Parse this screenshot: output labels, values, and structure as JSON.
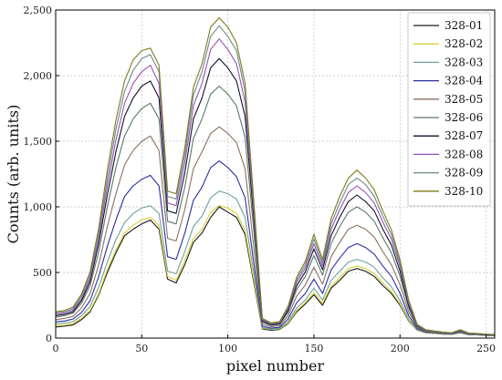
{
  "chart_data": {
    "type": "line",
    "title": "",
    "xlabel": "pixel number",
    "ylabel": "Counts (arb. units)",
    "xlim": [
      0,
      255
    ],
    "ylim": [
      0,
      2500
    ],
    "xticks": [
      0,
      50,
      100,
      150,
      200,
      250
    ],
    "yticks": [
      0,
      500,
      1000,
      1500,
      2000,
      2500
    ],
    "xtick_labels": [
      "0",
      "50",
      "100",
      "150",
      "200",
      "250"
    ],
    "ytick_labels": [
      "0",
      "500",
      "1,000",
      "1,500",
      "2,000",
      "2,500"
    ],
    "grid": true,
    "legend_position": "top-right",
    "x": [
      0,
      5,
      10,
      15,
      20,
      25,
      30,
      35,
      40,
      45,
      50,
      55,
      60,
      65,
      70,
      75,
      80,
      85,
      90,
      95,
      100,
      105,
      110,
      115,
      120,
      125,
      130,
      135,
      140,
      145,
      150,
      155,
      160,
      165,
      170,
      175,
      180,
      185,
      190,
      195,
      200,
      205,
      210,
      215,
      220,
      225,
      230,
      235,
      240,
      245,
      250,
      255
    ],
    "series": [
      {
        "name": "328-01",
        "color": "#1a1a1a",
        "values": [
          85,
          90,
          100,
          140,
          200,
          330,
          500,
          650,
          780,
          830,
          870,
          900,
          830,
          450,
          420,
          560,
          730,
          800,
          920,
          1000,
          960,
          920,
          790,
          430,
          70,
          60,
          65,
          110,
          200,
          260,
          330,
          250,
          380,
          440,
          510,
          530,
          510,
          470,
          400,
          340,
          250,
          130,
          60,
          40,
          35,
          30,
          28,
          40,
          26,
          24,
          20,
          18
        ]
      },
      {
        "name": "328-02",
        "color": "#d8d035",
        "values": [
          95,
          100,
          110,
          150,
          210,
          340,
          520,
          670,
          800,
          860,
          900,
          920,
          860,
          470,
          440,
          590,
          760,
          830,
          960,
          1010,
          990,
          950,
          820,
          450,
          75,
          65,
          70,
          115,
          210,
          270,
          345,
          265,
          395,
          460,
          530,
          550,
          530,
          490,
          420,
          355,
          260,
          135,
          62,
          42,
          36,
          32,
          29,
          42,
          27,
          25,
          21,
          19
        ]
      },
      {
        "name": "328-03",
        "color": "#6fa0a0",
        "values": [
          110,
          115,
          125,
          170,
          240,
          390,
          580,
          750,
          880,
          950,
          990,
          1010,
          950,
          510,
          490,
          660,
          850,
          930,
          1070,
          1120,
          1100,
          1060,
          920,
          500,
          80,
          68,
          74,
          125,
          230,
          290,
          380,
          290,
          440,
          510,
          580,
          600,
          580,
          540,
          460,
          390,
          285,
          145,
          65,
          44,
          38,
          33,
          30,
          44,
          28,
          26,
          22,
          20
        ]
      },
      {
        "name": "328-04",
        "color": "#2b2fa0",
        "values": [
          125,
          130,
          145,
          195,
          285,
          470,
          700,
          900,
          1080,
          1160,
          1210,
          1240,
          1160,
          620,
          600,
          800,
          1050,
          1150,
          1300,
          1350,
          1300,
          1230,
          1070,
          580,
          90,
          76,
          82,
          145,
          270,
          340,
          450,
          340,
          520,
          610,
          690,
          720,
          690,
          640,
          550,
          470,
          340,
          170,
          72,
          48,
          41,
          36,
          32,
          48,
          30,
          28,
          23,
          21
        ]
      },
      {
        "name": "328-05",
        "color": "#8b7060",
        "values": [
          140,
          150,
          165,
          230,
          340,
          560,
          850,
          1100,
          1320,
          1430,
          1500,
          1540,
          1430,
          760,
          740,
          980,
          1290,
          1420,
          1560,
          1610,
          1560,
          1490,
          1290,
          700,
          105,
          86,
          94,
          170,
          320,
          405,
          540,
          410,
          620,
          730,
          830,
          860,
          830,
          770,
          660,
          560,
          405,
          200,
          80,
          52,
          44,
          38,
          34,
          52,
          32,
          30,
          25,
          22
        ]
      },
      {
        "name": "328-06",
        "color": "#5a7a6a",
        "values": [
          160,
          170,
          190,
          265,
          400,
          660,
          1000,
          1300,
          1540,
          1670,
          1750,
          1790,
          1670,
          890,
          870,
          1150,
          1520,
          1670,
          1860,
          1920,
          1860,
          1770,
          1530,
          830,
          120,
          96,
          104,
          195,
          370,
          470,
          630,
          480,
          720,
          850,
          960,
          1000,
          960,
          890,
          765,
          650,
          470,
          230,
          88,
          56,
          47,
          40,
          36,
          56,
          34,
          31,
          26,
          23
        ]
      },
      {
        "name": "328-07",
        "color": "#121230",
        "values": [
          170,
          180,
          200,
          285,
          430,
          720,
          1090,
          1420,
          1690,
          1830,
          1920,
          1960,
          1830,
          970,
          950,
          1260,
          1670,
          1830,
          2060,
          2130,
          2060,
          1960,
          1690,
          920,
          130,
          102,
          110,
          210,
          400,
          505,
          680,
          520,
          780,
          920,
          1040,
          1090,
          1040,
          970,
          830,
          710,
          510,
          250,
          92,
          58,
          49,
          42,
          37,
          58,
          35,
          32,
          27,
          24
        ]
      },
      {
        "name": "328-08",
        "color": "#9a4fb5",
        "values": [
          180,
          190,
          212,
          300,
          455,
          760,
          1160,
          1510,
          1790,
          1940,
          2030,
          2080,
          1940,
          1030,
          1010,
          1340,
          1770,
          1940,
          2200,
          2280,
          2200,
          2090,
          1800,
          980,
          138,
          108,
          116,
          222,
          425,
          535,
          720,
          550,
          830,
          980,
          1110,
          1160,
          1110,
          1030,
          885,
          755,
          545,
          265,
          96,
          60,
          50,
          43,
          38,
          60,
          36,
          33,
          28,
          25
        ]
      },
      {
        "name": "328-09",
        "color": "#6a8a8a",
        "values": [
          190,
          200,
          224,
          318,
          480,
          800,
          1220,
          1590,
          1880,
          2040,
          2130,
          2160,
          2030,
          1080,
          1060,
          1400,
          1850,
          2030,
          2300,
          2380,
          2300,
          2190,
          1880,
          1020,
          145,
          112,
          120,
          232,
          445,
          560,
          755,
          575,
          870,
          1030,
          1170,
          1220,
          1170,
          1080,
          930,
          790,
          570,
          280,
          100,
          62,
          52,
          44,
          39,
          62,
          37,
          34,
          29,
          26
        ]
      },
      {
        "name": "328-10",
        "color": "#7d7a1e",
        "values": [
          200,
          210,
          236,
          335,
          505,
          840,
          1280,
          1660,
          1960,
          2120,
          2190,
          2210,
          2080,
          1120,
          1100,
          1450,
          1910,
          2090,
          2370,
          2440,
          2370,
          2250,
          1940,
          1060,
          150,
          116,
          124,
          242,
          465,
          585,
          790,
          600,
          910,
          1080,
          1220,
          1280,
          1220,
          1130,
          970,
          825,
          595,
          290,
          104,
          64,
          54,
          46,
          40,
          64,
          38,
          35,
          30,
          27
        ]
      }
    ]
  }
}
